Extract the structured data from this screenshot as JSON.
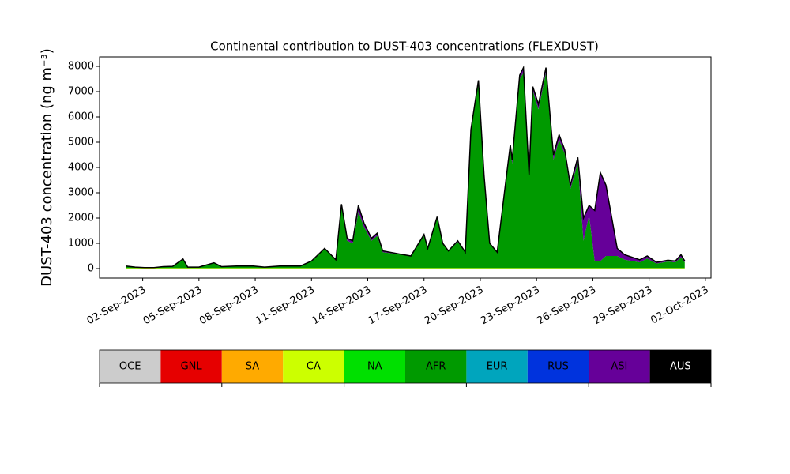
{
  "chart_data": {
    "type": "stacked_area",
    "title": "Continental contribution to DUST-403 concentrations (FLEXDUST)",
    "ylabel": "DUST-403 concentration (ng m⁻³)",
    "x": [
      1.1,
      1.6,
      2.1,
      2.6,
      3.1,
      3.6,
      4.15,
      4.4,
      5.0,
      5.8,
      6.2,
      7.0,
      7.9,
      8.5,
      9.3,
      10.4,
      11.0,
      11.7,
      12.3,
      12.6,
      12.9,
      13.2,
      13.5,
      13.8,
      14.2,
      14.5,
      14.8,
      15.9,
      16.3,
      17.0,
      17.2,
      17.7,
      18.0,
      18.3,
      18.8,
      19.2,
      19.5,
      19.9,
      20.2,
      20.5,
      20.9,
      21.4,
      21.6,
      21.7,
      22.1,
      22.3,
      22.6,
      22.8,
      23.1,
      23.5,
      23.9,
      24.2,
      24.5,
      24.8,
      25.2,
      25.5,
      25.8,
      26.1,
      26.4,
      26.7,
      27.3,
      27.7,
      28.5,
      28.9,
      29.4,
      30.0,
      30.4,
      30.7,
      30.9
    ],
    "xlim": [
      -0.3,
      32.3
    ],
    "xticks": [
      {
        "value": 2,
        "label": "02-Sep-2023"
      },
      {
        "value": 5,
        "label": "05-Sep-2023"
      },
      {
        "value": 8,
        "label": "08-Sep-2023"
      },
      {
        "value": 11,
        "label": "11-Sep-2023"
      },
      {
        "value": 14,
        "label": "14-Sep-2023"
      },
      {
        "value": 17,
        "label": "17-Sep-2023"
      },
      {
        "value": 20,
        "label": "20-Sep-2023"
      },
      {
        "value": 23,
        "label": "23-Sep-2023"
      },
      {
        "value": 26,
        "label": "26-Sep-2023"
      },
      {
        "value": 29,
        "label": "29-Sep-2023"
      },
      {
        "value": 32,
        "label": "02-Oct-2023"
      }
    ],
    "ylim": [
      -375,
      8375
    ],
    "yticks": [
      0,
      1000,
      2000,
      3000,
      4000,
      5000,
      6000,
      7000,
      8000
    ],
    "series": [
      {
        "name": "OCE",
        "color": "#cccccc",
        "values": [
          0,
          0,
          0,
          0,
          0,
          0,
          0,
          0,
          0,
          0,
          0,
          0,
          0,
          0,
          0,
          0,
          0,
          0,
          0,
          0,
          0,
          0,
          0,
          0,
          0,
          0,
          0,
          0,
          0,
          0,
          0,
          0,
          0,
          0,
          0,
          0,
          0,
          0,
          0,
          0,
          0,
          0,
          0,
          0,
          0,
          0,
          0,
          0,
          0,
          0,
          0,
          0,
          0,
          0,
          0,
          0,
          0,
          0,
          0,
          0,
          0,
          0,
          0,
          0,
          0,
          0,
          0,
          0,
          0
        ]
      },
      {
        "name": "GNL",
        "color": "#e60000",
        "values": [
          0,
          0,
          0,
          0,
          0,
          0,
          0,
          0,
          0,
          0,
          0,
          0,
          0,
          0,
          0,
          0,
          0,
          0,
          0,
          0,
          0,
          0,
          0,
          0,
          0,
          0,
          0,
          0,
          0,
          0,
          0,
          0,
          0,
          0,
          0,
          0,
          0,
          0,
          0,
          0,
          0,
          0,
          0,
          0,
          0,
          0,
          0,
          0,
          0,
          0,
          0,
          0,
          0,
          0,
          0,
          0,
          0,
          0,
          0,
          0,
          0,
          0,
          0,
          0,
          0,
          0,
          0,
          0,
          0
        ]
      },
      {
        "name": "SA",
        "color": "#ffaa00",
        "values": [
          0,
          0,
          0,
          0,
          0,
          0,
          0,
          0,
          0,
          0,
          0,
          0,
          0,
          0,
          0,
          0,
          0,
          0,
          0,
          0,
          0,
          0,
          0,
          0,
          0,
          0,
          0,
          0,
          0,
          0,
          0,
          0,
          0,
          0,
          0,
          0,
          0,
          0,
          0,
          0,
          0,
          0,
          0,
          0,
          0,
          0,
          0,
          0,
          0,
          0,
          0,
          0,
          0,
          0,
          0,
          0,
          0,
          0,
          0,
          0,
          0,
          0,
          0,
          0,
          0,
          0,
          0,
          0,
          0
        ]
      },
      {
        "name": "CA",
        "color": "#ccff00",
        "values": [
          20,
          20,
          20,
          20,
          20,
          20,
          20,
          20,
          20,
          20,
          20,
          20,
          20,
          20,
          20,
          20,
          20,
          20,
          20,
          20,
          20,
          20,
          20,
          20,
          20,
          20,
          20,
          20,
          20,
          20,
          20,
          20,
          20,
          20,
          20,
          20,
          20,
          20,
          20,
          20,
          20,
          20,
          20,
          20,
          20,
          20,
          20,
          20,
          20,
          20,
          20,
          20,
          20,
          20,
          20,
          20,
          20,
          20,
          20,
          20,
          20,
          20,
          20,
          20,
          20,
          20,
          20,
          20,
          20
        ]
      },
      {
        "name": "NA",
        "color": "#00e000",
        "values": [
          0,
          0,
          0,
          0,
          0,
          0,
          0,
          0,
          0,
          0,
          0,
          0,
          0,
          0,
          0,
          0,
          0,
          0,
          0,
          0,
          0,
          0,
          0,
          0,
          0,
          0,
          0,
          0,
          0,
          0,
          0,
          0,
          0,
          0,
          0,
          0,
          0,
          0,
          0,
          0,
          0,
          0,
          0,
          0,
          0,
          0,
          0,
          0,
          0,
          0,
          0,
          0,
          0,
          0,
          0,
          0,
          0,
          0,
          0,
          0,
          0,
          0,
          0,
          0,
          0,
          0,
          0,
          0,
          0
        ]
      },
      {
        "name": "AFR",
        "color": "#009a00",
        "values": [
          80,
          40,
          20,
          20,
          60,
          70,
          360,
          40,
          40,
          210,
          60,
          80,
          80,
          40,
          80,
          80,
          280,
          780,
          330,
          2430,
          1080,
          980,
          2230,
          1630,
          1080,
          1280,
          630,
          530,
          480,
          1280,
          780,
          1980,
          980,
          680,
          1030,
          630,
          5380,
          7330,
          3630,
          980,
          630,
          3630,
          4780,
          4130,
          7480,
          7730,
          3580,
          7030,
          6280,
          7730,
          4280,
          5080,
          4530,
          3130,
          4180,
          1080,
          2080,
          280,
          280,
          480,
          480,
          330,
          230,
          380,
          180,
          260,
          230,
          430,
          230
        ]
      },
      {
        "name": "EUR",
        "color": "#00a5bd",
        "values": [
          0,
          0,
          0,
          0,
          0,
          0,
          0,
          0,
          0,
          0,
          0,
          0,
          0,
          0,
          0,
          0,
          0,
          0,
          0,
          0,
          0,
          0,
          0,
          0,
          0,
          0,
          0,
          0,
          0,
          0,
          0,
          0,
          0,
          0,
          0,
          0,
          0,
          0,
          0,
          0,
          0,
          0,
          0,
          0,
          0,
          0,
          0,
          0,
          0,
          0,
          0,
          0,
          0,
          0,
          0,
          0,
          0,
          0,
          0,
          0,
          0,
          0,
          0,
          0,
          0,
          0,
          0,
          0,
          0
        ]
      },
      {
        "name": "RUS",
        "color": "#0033dd",
        "values": [
          0,
          0,
          0,
          0,
          0,
          0,
          0,
          0,
          0,
          0,
          0,
          0,
          0,
          0,
          0,
          0,
          0,
          0,
          0,
          0,
          0,
          0,
          0,
          0,
          0,
          0,
          0,
          0,
          0,
          0,
          0,
          0,
          0,
          0,
          0,
          0,
          0,
          0,
          0,
          0,
          0,
          0,
          0,
          0,
          0,
          0,
          0,
          0,
          0,
          0,
          0,
          0,
          0,
          0,
          0,
          0,
          0,
          0,
          0,
          0,
          0,
          0,
          0,
          0,
          0,
          0,
          0,
          0,
          0
        ]
      },
      {
        "name": "ASI",
        "color": "#660099",
        "values": [
          0,
          0,
          0,
          0,
          0,
          0,
          0,
          0,
          0,
          0,
          0,
          0,
          0,
          0,
          0,
          0,
          0,
          0,
          0,
          100,
          100,
          100,
          250,
          150,
          100,
          100,
          50,
          0,
          0,
          50,
          0,
          50,
          0,
          0,
          50,
          0,
          100,
          100,
          50,
          0,
          0,
          50,
          100,
          150,
          150,
          200,
          100,
          150,
          200,
          200,
          200,
          200,
          150,
          150,
          200,
          900,
          400,
          2000,
          3500,
          2800,
          300,
          200,
          100,
          100,
          50,
          50,
          50,
          100,
          50
        ]
      },
      {
        "name": "AUS",
        "color": "#000000",
        "values": [
          0,
          0,
          0,
          0,
          0,
          0,
          0,
          0,
          0,
          0,
          0,
          0,
          0,
          0,
          0,
          0,
          0,
          0,
          0,
          0,
          0,
          0,
          0,
          0,
          0,
          0,
          0,
          0,
          0,
          0,
          0,
          0,
          0,
          0,
          0,
          0,
          0,
          0,
          0,
          0,
          0,
          0,
          0,
          0,
          0,
          0,
          0,
          0,
          0,
          0,
          0,
          0,
          0,
          0,
          0,
          0,
          0,
          0,
          0,
          0,
          0,
          0,
          0,
          0,
          0,
          0,
          0,
          0,
          0
        ]
      }
    ]
  }
}
